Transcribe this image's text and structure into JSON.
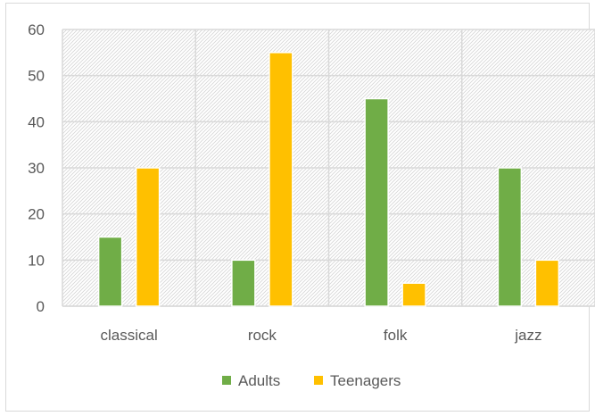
{
  "chart_data": {
    "type": "bar",
    "categories": [
      "classical",
      "rock",
      "folk",
      "jazz"
    ],
    "series": [
      {
        "name": "Adults",
        "values": [
          15,
          10,
          45,
          30
        ],
        "color": "#70ad47"
      },
      {
        "name": "Teenagers",
        "values": [
          30,
          55,
          5,
          10
        ],
        "color": "#ffc000"
      }
    ],
    "ylim": [
      0,
      60
    ],
    "yticks": [
      0,
      10,
      20,
      30,
      40,
      50,
      60
    ],
    "grid": true,
    "plot_background": "hatched",
    "legend_position": "bottom",
    "title": "",
    "xlabel": "",
    "ylabel": ""
  }
}
